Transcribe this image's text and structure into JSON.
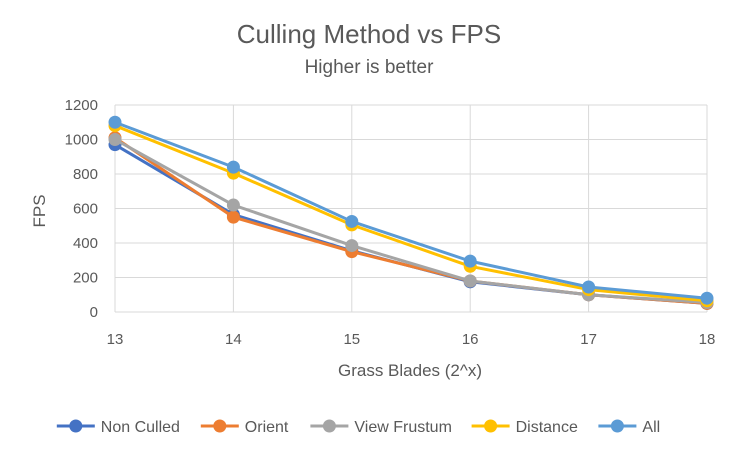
{
  "chart_data": {
    "type": "line",
    "title": "Culling Method vs FPS",
    "subtitle": "Higher is better",
    "xlabel": "Grass Blades (2^x)",
    "ylabel": "FPS",
    "x": [
      13,
      14,
      15,
      16,
      17,
      18
    ],
    "x_tick_labels": [
      "13",
      "14",
      "15",
      "16",
      "17",
      "18"
    ],
    "ylim": [
      0,
      1200
    ],
    "y_ticks": [
      0,
      200,
      400,
      600,
      800,
      1000,
      1200
    ],
    "y_tick_labels": [
      "0",
      "200",
      "400",
      "600",
      "800",
      "1000",
      "1200"
    ],
    "grid": "horizontal and vertical",
    "legend_position": "bottom",
    "series": [
      {
        "name": "Non Culled",
        "color": "#4472C4",
        "values": [
          970,
          565,
          355,
          175,
          100,
          50
        ]
      },
      {
        "name": "Orient",
        "color": "#ED7D31",
        "values": [
          1010,
          550,
          350,
          180,
          100,
          50
        ]
      },
      {
        "name": "View Frustum",
        "color": "#A5A5A5",
        "values": [
          1000,
          620,
          385,
          180,
          100,
          55
        ]
      },
      {
        "name": "Distance",
        "color": "#FFC000",
        "values": [
          1080,
          805,
          505,
          265,
          130,
          65
        ]
      },
      {
        "name": "All",
        "color": "#5B9BD5",
        "values": [
          1100,
          840,
          525,
          295,
          145,
          80
        ]
      }
    ]
  }
}
